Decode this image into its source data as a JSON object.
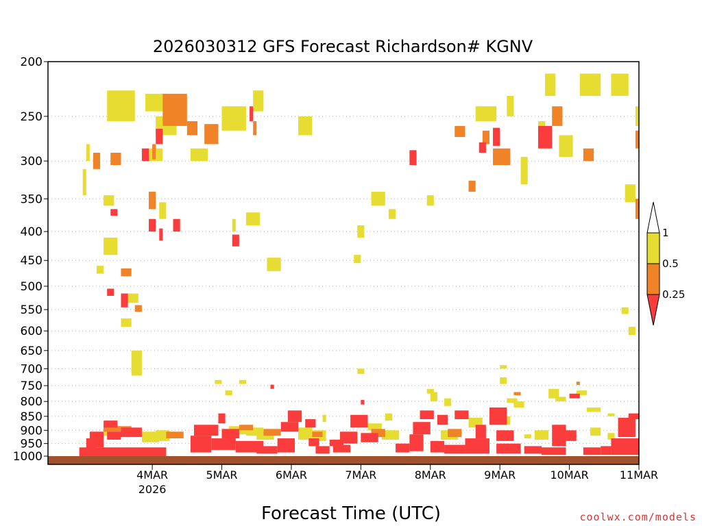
{
  "chart_data": {
    "type": "heatmap",
    "title": "2026030312 GFS Forecast Richardson# KGNV",
    "xlabel": "Forecast Time (UTC)",
    "ylabel": "",
    "y_ticks": [
      "200",
      "250",
      "300",
      "350",
      "400",
      "450",
      "500",
      "550",
      "600",
      "650",
      "700",
      "750",
      "800",
      "850",
      "900",
      "950",
      "1000"
    ],
    "y_values": [
      200,
      250,
      300,
      350,
      400,
      450,
      500,
      550,
      600,
      650,
      700,
      750,
      800,
      850,
      900,
      950,
      1000
    ],
    "ylim": [
      200,
      1000
    ],
    "x_ticks": [
      {
        "label": "4MAR",
        "sublabel": "2026",
        "day": 1.0
      },
      {
        "label": "5MAR",
        "sublabel": "",
        "day": 2.0
      },
      {
        "label": "6MAR",
        "sublabel": "",
        "day": 3.0
      },
      {
        "label": "7MAR",
        "sublabel": "",
        "day": 4.0
      },
      {
        "label": "8MAR",
        "sublabel": "",
        "day": 5.0
      },
      {
        "label": "9MAR",
        "sublabel": "",
        "day": 6.0
      },
      {
        "label": "10MAR",
        "sublabel": "",
        "day": 7.0
      },
      {
        "label": "11MAR",
        "sublabel": "",
        "day": 8.0
      }
    ],
    "xlim_days": [
      -0.5,
      8.0
    ],
    "legend": {
      "position": "right",
      "thresholds": [
        "1",
        "0.5",
        "0.25"
      ],
      "bins": [
        {
          "range": "> 1",
          "color": "#ffffff"
        },
        {
          "range": "0.5-1",
          "color": "#e6dc32"
        },
        {
          "range": "0.25-0.5",
          "color": "#f08228"
        },
        {
          "range": "< 0.25",
          "color": "#fa3c3c"
        }
      ]
    },
    "colors": {
      "yellow": "#e6dc32",
      "orange": "#f08228",
      "red": "#fa3c3c",
      "ground": "#a0522d"
    },
    "series": [
      {
        "name": "Ri 0.5-1 (yellow) patches, [day_start, day_end, p_top, p_bottom]",
        "color": "yellow",
        "values": [
          [
            0.35,
            0.75,
            225,
            255
          ],
          [
            0.9,
            1.2,
            228,
            245
          ],
          [
            0.9,
            1.15,
            285,
            300
          ],
          [
            1.05,
            1.35,
            250,
            270
          ],
          [
            1.55,
            1.8,
            285,
            300
          ],
          [
            1.1,
            1.2,
            355,
            380
          ],
          [
            0.3,
            0.45,
            345,
            360
          ],
          [
            0.3,
            0.5,
            410,
            440
          ],
          [
            0.6,
            0.8,
            515,
            535
          ],
          [
            0.55,
            0.7,
            570,
            590
          ],
          [
            0.2,
            0.3,
            460,
            475
          ],
          [
            2.45,
            2.6,
            225,
            245
          ],
          [
            2.0,
            2.35,
            240,
            265
          ],
          [
            2.35,
            2.55,
            370,
            390
          ],
          [
            2.65,
            2.85,
            445,
            470
          ],
          [
            2.15,
            2.2,
            380,
            400
          ],
          [
            3.1,
            3.3,
            250,
            270
          ],
          [
            3.95,
            4.05,
            390,
            410
          ],
          [
            3.9,
            4.0,
            440,
            455
          ],
          [
            4.15,
            4.35,
            340,
            360
          ],
          [
            4.4,
            4.5,
            365,
            380
          ],
          [
            4.95,
            5.05,
            345,
            360
          ],
          [
            5.65,
            5.95,
            240,
            255
          ],
          [
            6.1,
            6.2,
            230,
            250
          ],
          [
            6.3,
            6.4,
            295,
            330
          ],
          [
            6.55,
            6.65,
            255,
            275
          ],
          [
            6.65,
            6.8,
            210,
            230
          ],
          [
            6.85,
            7.05,
            270,
            295
          ],
          [
            7.15,
            7.45,
            210,
            230
          ],
          [
            7.6,
            7.85,
            210,
            230
          ],
          [
            7.8,
            7.95,
            330,
            355
          ],
          [
            7.75,
            7.85,
            545,
            560
          ],
          [
            7.85,
            7.95,
            590,
            610
          ],
          [
            0.7,
            0.85,
            650,
            720
          ],
          [
            0.05,
            0.1,
            280,
            300
          ],
          [
            0.0,
            0.05,
            310,
            345
          ],
          [
            7.95,
            8.0,
            240,
            260
          ],
          [
            0.3,
            0.4,
            880,
            920
          ],
          [
            0.85,
            1.1,
            905,
            945
          ],
          [
            1.05,
            1.25,
            900,
            940
          ],
          [
            2.1,
            2.35,
            885,
            915
          ],
          [
            2.35,
            2.6,
            890,
            920
          ],
          [
            2.5,
            2.75,
            905,
            935
          ],
          [
            3.1,
            3.3,
            890,
            935
          ],
          [
            3.3,
            3.5,
            900,
            940
          ],
          [
            4.1,
            4.3,
            875,
            900
          ],
          [
            4.3,
            4.55,
            900,
            935
          ],
          [
            5.15,
            5.4,
            900,
            935
          ],
          [
            5.55,
            5.75,
            855,
            890
          ],
          [
            6.0,
            6.15,
            850,
            880
          ],
          [
            6.1,
            6.25,
            790,
            805
          ],
          [
            6.35,
            6.45,
            915,
            930
          ],
          [
            6.5,
            6.7,
            900,
            935
          ],
          [
            6.7,
            6.85,
            760,
            790
          ],
          [
            6.8,
            6.95,
            785,
            800
          ],
          [
            7.1,
            7.25,
            765,
            780
          ],
          [
            7.25,
            7.45,
            820,
            835
          ],
          [
            7.3,
            7.45,
            890,
            920
          ],
          [
            7.55,
            7.65,
            840,
            850
          ],
          [
            7.55,
            7.65,
            910,
            935
          ],
          [
            7.7,
            7.85,
            860,
            900
          ],
          [
            6.0,
            6.1,
            690,
            700
          ],
          [
            6.0,
            6.1,
            725,
            745
          ],
          [
            3.95,
            4.05,
            700,
            715
          ],
          [
            1.9,
            2.0,
            733,
            745
          ],
          [
            2.05,
            2.15,
            765,
            780
          ],
          [
            2.25,
            2.35,
            733,
            745
          ],
          [
            5.0,
            5.1,
            770,
            800
          ],
          [
            4.95,
            5.05,
            760,
            775
          ],
          [
            5.2,
            5.3,
            790,
            815
          ],
          [
            4.35,
            4.45,
            840,
            865
          ],
          [
            3.45,
            3.5,
            845,
            870
          ],
          [
            6.2,
            6.35,
            800,
            820
          ]
        ]
      },
      {
        "name": "Ri 0.25-0.5 (orange) patches",
        "color": "orange",
        "values": [
          [
            1.15,
            1.5,
            228,
            260
          ],
          [
            1.5,
            1.65,
            255,
            270
          ],
          [
            1.75,
            1.95,
            258,
            280
          ],
          [
            2.45,
            2.5,
            255,
            270
          ],
          [
            0.4,
            0.55,
            290,
            305
          ],
          [
            0.15,
            0.25,
            290,
            310
          ],
          [
            0.55,
            0.7,
            465,
            480
          ],
          [
            0.75,
            0.85,
            540,
            555
          ],
          [
            0.95,
            1.05,
            340,
            365
          ],
          [
            1.0,
            1.05,
            280,
            298
          ],
          [
            5.9,
            6.15,
            285,
            305
          ],
          [
            5.35,
            5.5,
            260,
            272
          ],
          [
            5.75,
            5.85,
            265,
            280
          ],
          [
            6.75,
            6.9,
            240,
            260
          ],
          [
            7.2,
            7.35,
            285,
            300
          ],
          [
            5.55,
            5.65,
            325,
            340
          ],
          [
            7.95,
            8.0,
            265,
            285
          ],
          [
            7.95,
            8.0,
            350,
            380
          ],
          [
            0.3,
            0.7,
            885,
            905
          ],
          [
            1.2,
            1.45,
            905,
            930
          ],
          [
            2.25,
            2.45,
            880,
            900
          ],
          [
            2.6,
            2.85,
            895,
            920
          ],
          [
            3.3,
            3.45,
            905,
            925
          ],
          [
            4.15,
            4.35,
            895,
            925
          ],
          [
            5.25,
            5.45,
            895,
            925
          ],
          [
            6.2,
            6.3,
            770,
            780
          ],
          [
            7.1,
            7.15,
            738,
            748
          ]
        ]
      },
      {
        "name": "Ri < 0.25 (red) patches",
        "color": "red",
        "values": [
          [
            1.05,
            1.15,
            263,
            280
          ],
          [
            0.85,
            0.95,
            285,
            300
          ],
          [
            0.4,
            0.5,
            365,
            375
          ],
          [
            0.95,
            1.05,
            380,
            400
          ],
          [
            1.3,
            1.4,
            380,
            400
          ],
          [
            0.55,
            0.65,
            515,
            545
          ],
          [
            0.35,
            0.45,
            505,
            520
          ],
          [
            1.1,
            1.15,
            395,
            415
          ],
          [
            2.15,
            2.25,
            405,
            425
          ],
          [
            2.4,
            2.45,
            240,
            255
          ],
          [
            2.7,
            2.75,
            747,
            760
          ],
          [
            5.9,
            6.0,
            262,
            282
          ],
          [
            5.7,
            5.8,
            278,
            290
          ],
          [
            6.55,
            6.75,
            260,
            285
          ],
          [
            4.7,
            4.8,
            287,
            305
          ],
          [
            4.0,
            4.05,
            795,
            810
          ],
          [
            -0.05,
            1.2,
            965,
            1000
          ],
          [
            0.05,
            0.2,
            930,
            990
          ],
          [
            0.3,
            0.5,
            865,
            890
          ],
          [
            0.35,
            0.55,
            905,
            935
          ],
          [
            0.55,
            0.85,
            890,
            925
          ],
          [
            0.1,
            0.3,
            905,
            965
          ],
          [
            1.55,
            1.85,
            920,
            985
          ],
          [
            1.6,
            1.95,
            880,
            920
          ],
          [
            1.85,
            2.2,
            930,
            975
          ],
          [
            2.0,
            2.25,
            895,
            930
          ],
          [
            2.2,
            2.6,
            940,
            985
          ],
          [
            1.95,
            2.05,
            840,
            875
          ],
          [
            2.5,
            2.8,
            960,
            990
          ],
          [
            2.8,
            3.05,
            930,
            985
          ],
          [
            2.85,
            3.1,
            870,
            905
          ],
          [
            2.95,
            3.15,
            830,
            870
          ],
          [
            3.2,
            3.35,
            860,
            890
          ],
          [
            3.25,
            3.4,
            930,
            960
          ],
          [
            3.35,
            3.55,
            960,
            990
          ],
          [
            3.6,
            3.85,
            955,
            985
          ],
          [
            3.7,
            3.95,
            905,
            950
          ],
          [
            3.85,
            4.1,
            845,
            890
          ],
          [
            4.0,
            4.25,
            910,
            945
          ],
          [
            3.55,
            3.75,
            935,
            960
          ],
          [
            4.5,
            4.7,
            950,
            985
          ],
          [
            4.7,
            4.9,
            915,
            980
          ],
          [
            4.75,
            5.0,
            870,
            915
          ],
          [
            4.85,
            5.05,
            830,
            860
          ],
          [
            5.1,
            5.25,
            845,
            880
          ],
          [
            5.35,
            5.55,
            830,
            860
          ],
          [
            5.0,
            5.2,
            940,
            985
          ],
          [
            5.2,
            5.5,
            955,
            990
          ],
          [
            5.5,
            5.85,
            930,
            990
          ],
          [
            5.65,
            5.8,
            880,
            930
          ],
          [
            5.85,
            6.1,
            820,
            880
          ],
          [
            5.95,
            6.2,
            900,
            940
          ],
          [
            5.95,
            6.3,
            950,
            990
          ],
          [
            6.35,
            6.6,
            960,
            990
          ],
          [
            6.6,
            6.95,
            965,
            995
          ],
          [
            6.75,
            6.95,
            880,
            960
          ],
          [
            6.95,
            7.1,
            900,
            940
          ],
          [
            7.2,
            7.45,
            965,
            995
          ],
          [
            7.45,
            7.6,
            960,
            995
          ],
          [
            7.6,
            8.0,
            930,
            995
          ],
          [
            7.7,
            7.95,
            855,
            925
          ],
          [
            7.85,
            8.0,
            840,
            860
          ],
          [
            7.0,
            7.15,
            775,
            790
          ]
        ]
      }
    ]
  },
  "credit": "coolwx.com/models"
}
